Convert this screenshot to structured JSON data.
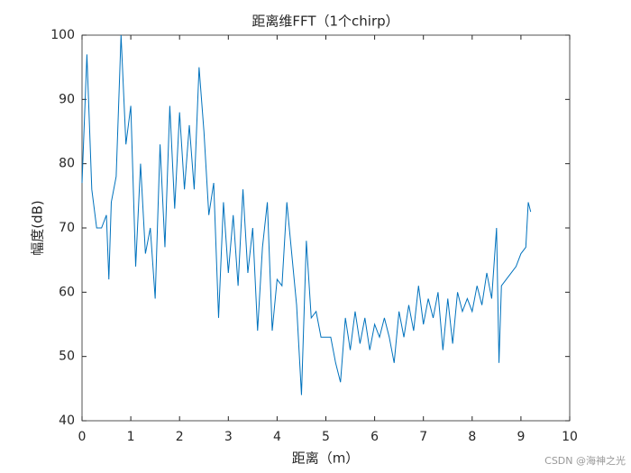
{
  "chart_data": {
    "type": "line",
    "title": "距离维FFT（1个chirp）",
    "xlabel": "距离（m）",
    "ylabel": "幅度(dB)",
    "watermark": "CSDN @海神之光",
    "x": [
      0,
      0.1,
      0.2,
      0.3,
      0.4,
      0.5,
      0.55,
      0.6,
      0.7,
      0.8,
      0.9,
      1.0,
      1.1,
      1.2,
      1.3,
      1.4,
      1.5,
      1.6,
      1.7,
      1.8,
      1.9,
      2.0,
      2.1,
      2.2,
      2.3,
      2.4,
      2.5,
      2.6,
      2.7,
      2.8,
      2.9,
      3.0,
      3.1,
      3.2,
      3.3,
      3.4,
      3.5,
      3.6,
      3.7,
      3.8,
      3.9,
      4.0,
      4.1,
      4.2,
      4.3,
      4.4,
      4.5,
      4.6,
      4.7,
      4.8,
      4.9,
      5.0,
      5.1,
      5.2,
      5.3,
      5.4,
      5.5,
      5.6,
      5.7,
      5.8,
      5.9,
      6.0,
      6.1,
      6.2,
      6.3,
      6.4,
      6.5,
      6.6,
      6.7,
      6.8,
      6.9,
      7.0,
      7.1,
      7.2,
      7.3,
      7.4,
      7.5,
      7.6,
      7.7,
      7.8,
      7.9,
      8.0,
      8.1,
      8.2,
      8.3,
      8.4,
      8.5,
      8.55,
      8.6,
      8.7,
      8.8,
      8.9,
      9.0,
      9.1,
      9.15,
      9.2
    ],
    "series": [
      {
        "name": "幅度",
        "color": "#0072bd",
        "values": [
          77,
          97,
          76,
          70,
          70,
          72,
          62,
          74,
          78,
          100,
          83,
          89,
          64,
          80,
          66,
          70,
          59,
          83,
          67,
          89,
          73,
          88,
          76,
          86,
          76,
          95,
          85,
          72,
          77,
          56,
          74,
          63,
          72,
          61,
          76,
          63,
          70,
          54,
          67,
          74,
          54,
          62,
          61,
          74,
          66,
          58,
          44,
          68,
          56,
          57,
          53,
          53,
          53,
          49,
          46,
          56,
          51,
          57,
          52,
          56,
          51,
          55,
          53,
          56,
          53,
          49,
          57,
          53,
          58,
          54,
          61,
          55,
          59,
          56,
          60,
          51,
          59,
          52,
          60,
          57,
          59,
          57,
          61,
          58,
          63,
          59,
          70,
          49,
          61,
          62,
          63,
          64,
          66,
          67,
          74,
          72.5
        ]
      }
    ],
    "xlim": [
      0,
      10
    ],
    "ylim": [
      40,
      100
    ],
    "xticks": [
      0,
      1,
      2,
      3,
      4,
      5,
      6,
      7,
      8,
      9,
      10
    ],
    "yticks": [
      40,
      50,
      60,
      70,
      80,
      90,
      100
    ]
  }
}
